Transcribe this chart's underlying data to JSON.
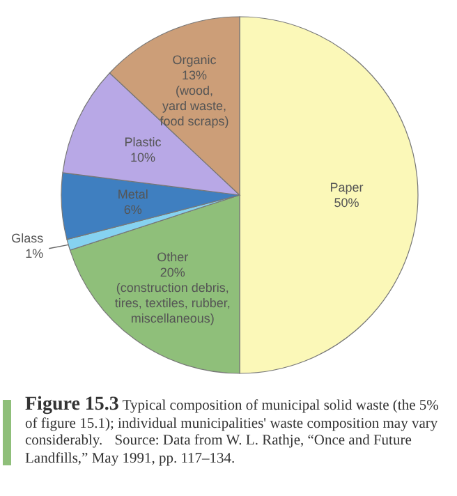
{
  "chart_data": {
    "type": "pie",
    "title": "Figure 15.3",
    "subtitle": "Typical composition of municipal solid waste (the 5% of figure 15.1); individual municipalities' waste composition may vary considerably.",
    "annotations": [
      "Source: Data from W. L. Rathje, “Once and Future Landfills,” May 1991, pp. 117–134."
    ],
    "categories": [
      "Paper",
      "Other\n(construction debris,\ntires, textiles, rubber,\nmiscellaneous)",
      "Glass",
      "Metal",
      "Plastic",
      "Organic\n(wood,\nyard waste,\nfood scraps)"
    ],
    "values": [
      50,
      20,
      1,
      6,
      10,
      13
    ],
    "value_labels": [
      "50%",
      "20%",
      "1%",
      "6%",
      "10%",
      "13%"
    ],
    "colors": [
      "#fbf8b8",
      "#8fbf7a",
      "#86d2f0",
      "#3f7fc0",
      "#b8a8e6",
      "#cc9e78"
    ]
  }
}
